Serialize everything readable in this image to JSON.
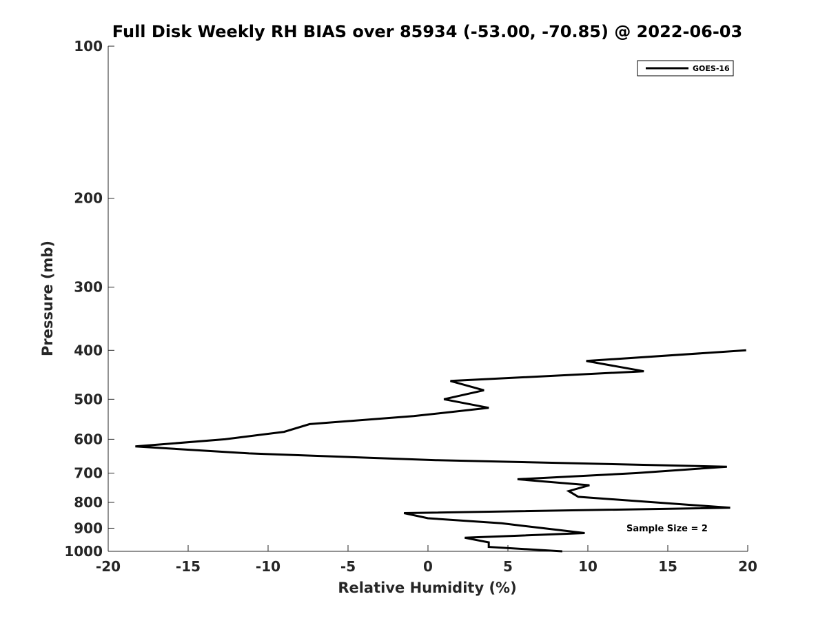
{
  "chart_data": {
    "type": "line",
    "title": "Full Disk Weekly RH BIAS over 85934 (-53.00, -70.85) @ 2022-06-03",
    "xlabel": "Relative Humidity (%)",
    "ylabel": "Pressure (mb)",
    "xlim": [
      -20,
      20
    ],
    "ylim": [
      100,
      1000
    ],
    "yscale": "log",
    "y_reversed": true,
    "grid": false,
    "legend_position": "top-right",
    "x_ticks": [
      "-20",
      "-15",
      "-10",
      "-5",
      "0",
      "5",
      "10",
      "15",
      "20"
    ],
    "y_ticks": [
      "100",
      "200",
      "300",
      "400",
      "500",
      "600",
      "700",
      "800",
      "900",
      "1000"
    ],
    "series": [
      {
        "name": "GOES-16",
        "color": "#000000",
        "x": [
          19.9,
          9.9,
          13.5,
          1.4,
          3.5,
          1.0,
          3.8,
          -0.9,
          -7.4,
          -9.0,
          -12.7,
          -18.3,
          -11.2,
          0.5,
          18.7,
          13.0,
          5.6,
          10.1,
          8.8,
          9.4,
          18.9,
          -1.5,
          0.0,
          4.6,
          9.8,
          2.3,
          3.8,
          3.8,
          8.4
        ],
        "y": [
          400,
          420,
          440,
          460,
          480,
          500,
          520,
          540,
          560,
          580,
          600,
          620,
          640,
          660,
          680,
          700,
          720,
          740,
          760,
          780,
          820,
          840,
          860,
          880,
          920,
          940,
          960,
          980,
          1000
        ]
      }
    ],
    "annotations": [
      "Sample Size = 2"
    ]
  }
}
